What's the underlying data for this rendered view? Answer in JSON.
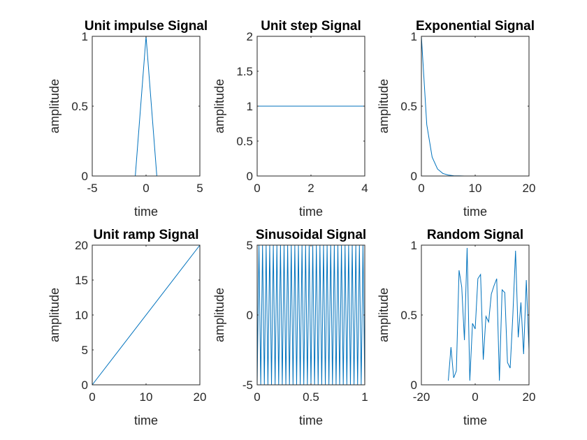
{
  "chart_data": [
    {
      "type": "line",
      "title": "Unit impulse Signal",
      "xlabel": "time",
      "ylabel": "amplitude",
      "xlim": [
        -5,
        5
      ],
      "ylim": [
        0,
        1
      ],
      "xticks": [
        "-5",
        "0",
        "5"
      ],
      "yticks": [
        "0",
        "0.5",
        "1"
      ],
      "color": "#0072bd",
      "series": [
        {
          "x": [
            -5,
            -4,
            -3,
            -2,
            -1,
            0,
            1,
            2,
            3,
            4,
            5
          ],
          "y": [
            0,
            0,
            0,
            0,
            0,
            1,
            0,
            0,
            0,
            0,
            0
          ]
        }
      ]
    },
    {
      "type": "line",
      "title": "Unit step Signal",
      "xlabel": "time",
      "ylabel": "amplitude",
      "xlim": [
        0,
        4
      ],
      "ylim": [
        0,
        2
      ],
      "xticks": [
        "0",
        "2",
        "4"
      ],
      "yticks": [
        "0",
        "0.5",
        "1",
        "1.5",
        "2"
      ],
      "color": "#0072bd",
      "series": [
        {
          "x": [
            0,
            1,
            2,
            3,
            4
          ],
          "y": [
            1,
            1,
            1,
            1,
            1
          ]
        }
      ]
    },
    {
      "type": "line",
      "title": "Exponential Signal",
      "xlabel": "time",
      "ylabel": "amplitude",
      "xlim": [
        0,
        20
      ],
      "ylim": [
        0,
        1
      ],
      "xticks": [
        "0",
        "10",
        "20"
      ],
      "yticks": [
        "0",
        "0.5",
        "1"
      ],
      "color": "#0072bd",
      "series": [
        {
          "x": [
            0,
            1,
            2,
            3,
            4,
            5,
            6,
            7,
            8,
            9,
            10,
            11,
            12,
            13,
            14,
            15,
            16,
            17,
            18,
            19,
            20
          ],
          "y": [
            1,
            0.368,
            0.135,
            0.05,
            0.018,
            0.007,
            0.002,
            0.001,
            0,
            0,
            0,
            0,
            0,
            0,
            0,
            0,
            0,
            0,
            0,
            0,
            0
          ]
        }
      ]
    },
    {
      "type": "line",
      "title": "Unit ramp Signal",
      "xlabel": "time",
      "ylabel": "amplitude",
      "xlim": [
        0,
        20
      ],
      "ylim": [
        0,
        20
      ],
      "xticks": [
        "0",
        "10",
        "20"
      ],
      "yticks": [
        "0",
        "5",
        "10",
        "15",
        "20"
      ],
      "color": "#0072bd",
      "series": [
        {
          "x": [
            0,
            20
          ],
          "y": [
            0,
            20
          ]
        }
      ]
    },
    {
      "type": "line",
      "title": "Sinusoidal Signal",
      "xlabel": "time",
      "ylabel": "amplitude",
      "xlim": [
        0,
        1
      ],
      "ylim": [
        -5,
        5
      ],
      "xticks": [
        "0",
        "0.5",
        "1"
      ],
      "yticks": [
        "-5",
        "0",
        "5"
      ],
      "color": "#0072bd",
      "series": [
        {
          "x": [
            0,
            0.0167,
            0.0333,
            0.05,
            0.0667,
            0.0833,
            0.1,
            0.1167,
            0.1333,
            0.15,
            0.1667,
            0.1833,
            0.2,
            0.2167,
            0.2333,
            0.25,
            0.2667,
            0.2833,
            0.3,
            0.3167,
            0.3333,
            0.35,
            0.3667,
            0.3833,
            0.4,
            0.4167,
            0.4333,
            0.45,
            0.4667,
            0.4833,
            0.5,
            0.5167,
            0.5333,
            0.55,
            0.5667,
            0.5833,
            0.6,
            0.6167,
            0.6333,
            0.65,
            0.6667,
            0.6833,
            0.7,
            0.7167,
            0.7333,
            0.75,
            0.7667,
            0.7833,
            0.8,
            0.8167,
            0.8333,
            0.85,
            0.8667,
            0.8833,
            0.9,
            0.9167,
            0.9333,
            0.95,
            0.9667,
            0.9833,
            1
          ],
          "y": [
            -5,
            5,
            -5,
            5,
            -5,
            5,
            -5,
            5,
            -5,
            5,
            -5,
            5,
            -5,
            5,
            -5,
            5,
            -5,
            5,
            -5,
            5,
            -5,
            5,
            -5,
            5,
            -5,
            5,
            -5,
            5,
            -5,
            5,
            -5,
            5,
            -5,
            5,
            -5,
            5,
            -5,
            5,
            -5,
            5,
            -5,
            5,
            -5,
            5,
            -5,
            5,
            -5,
            5,
            -5,
            5,
            -5,
            5,
            -5,
            5,
            -5,
            5,
            -5,
            5,
            -5,
            5,
            -5
          ]
        }
      ]
    },
    {
      "type": "line",
      "title": "Random Signal",
      "xlabel": "time",
      "ylabel": "amplitude",
      "xlim": [
        -20,
        20
      ],
      "ylim": [
        0,
        1
      ],
      "xticks": [
        "-20",
        "0",
        "20"
      ],
      "yticks": [
        "0",
        "0.5",
        "1"
      ],
      "color": "#0072bd",
      "series": [
        {
          "x": [
            -10,
            -9,
            -8,
            -7,
            -6,
            -5,
            -4,
            -3,
            -2,
            -1,
            0,
            1,
            2,
            3,
            4,
            5,
            6,
            7,
            8,
            9,
            10,
            11,
            12,
            13,
            14,
            15,
            16,
            17,
            18,
            19,
            20
          ],
          "y": [
            0.03,
            0.27,
            0.05,
            0.1,
            0.82,
            0.7,
            0.32,
            0.98,
            0.03,
            0.44,
            0.4,
            0.76,
            0.79,
            0.18,
            0.49,
            0.45,
            0.65,
            0.71,
            0.76,
            0.03,
            0.68,
            0.66,
            0.16,
            0.12,
            0.5,
            0.96,
            0.34,
            0.59,
            0.22,
            0.75,
            0.25
          ]
        }
      ]
    }
  ]
}
